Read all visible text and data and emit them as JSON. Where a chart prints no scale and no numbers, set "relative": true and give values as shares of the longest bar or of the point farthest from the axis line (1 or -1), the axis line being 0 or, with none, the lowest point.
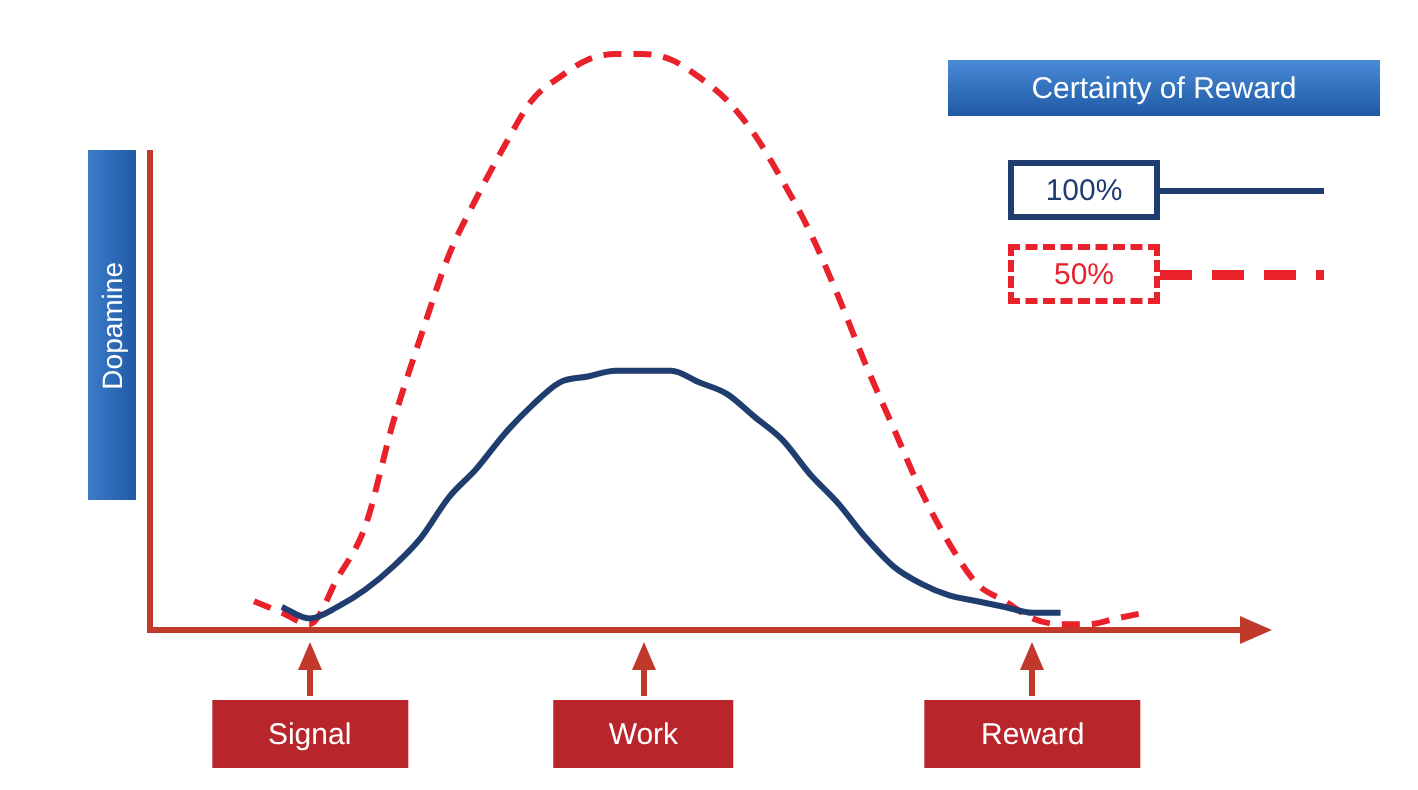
{
  "chart_data": {
    "type": "line",
    "relative": true,
    "ylabel": "Dopamine",
    "legend_title": "Certainty of Reward",
    "legend": "top right",
    "marker": "none",
    "categories": [
      null,
      null,
      "Signal",
      null,
      null,
      null,
      null,
      null,
      null,
      null,
      null,
      null,
      null,
      null,
      "Work",
      null,
      null,
      null,
      null,
      null,
      null,
      null,
      null,
      null,
      null,
      null,
      null,
      null,
      "Reward",
      null,
      null,
      null,
      null
    ],
    "series": [
      {
        "name": "100%",
        "color": "#1f3d6e",
        "line_style": "solid",
        "values": [
          null,
          0.04,
          0.02,
          0.04,
          0.07,
          0.11,
          0.16,
          0.23,
          0.28,
          0.34,
          0.39,
          0.43,
          0.44,
          0.45,
          0.45,
          0.45,
          0.43,
          0.41,
          0.37,
          0.33,
          0.27,
          0.22,
          0.16,
          0.11,
          0.08,
          0.06,
          0.05,
          0.04,
          0.03,
          0.03,
          null,
          null,
          null
        ]
      },
      {
        "name": "50%",
        "color": "#e8212b",
        "line_style": "dashed",
        "values": [
          0.05,
          0.03,
          0.01,
          0.09,
          0.18,
          0.36,
          0.51,
          0.65,
          0.75,
          0.84,
          0.92,
          0.96,
          0.99,
          1,
          1,
          0.99,
          0.96,
          0.92,
          0.86,
          0.78,
          0.69,
          0.58,
          0.46,
          0.35,
          0.24,
          0.15,
          0.08,
          0.05,
          0.02,
          0.01,
          0.01,
          0.02,
          0.03
        ]
      }
    ]
  }
}
